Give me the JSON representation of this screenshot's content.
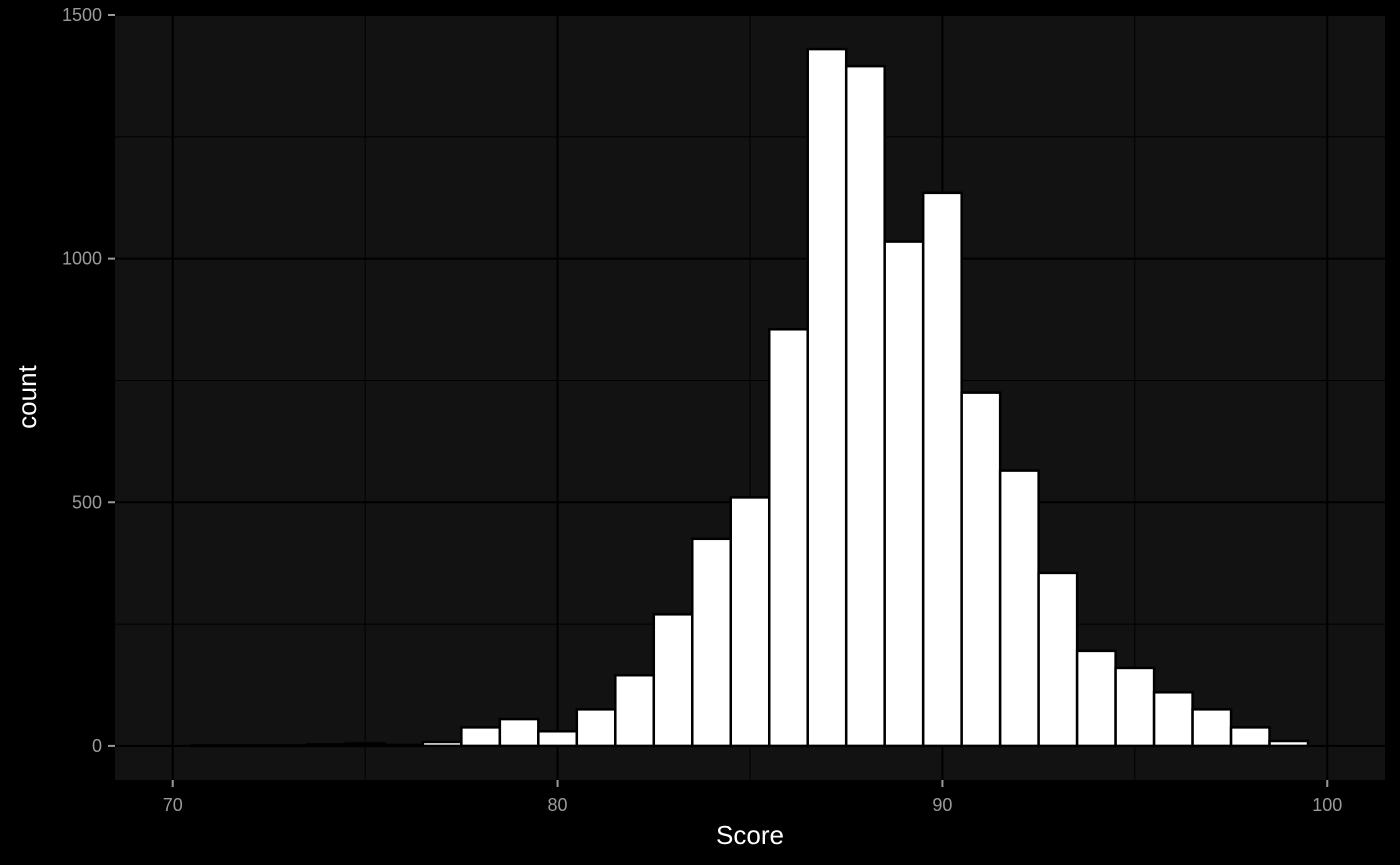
{
  "chart_data": {
    "type": "bar",
    "histogram": true,
    "title": "",
    "xlabel": "Score",
    "ylabel": "count",
    "xlim": [
      68.5,
      101.5
    ],
    "ylim": [
      -70,
      1500
    ],
    "x_ticks": [
      70,
      80,
      90,
      100
    ],
    "y_ticks": [
      0,
      500,
      1000,
      1500
    ],
    "x_tick_labels": [
      "70",
      "80",
      "90",
      "100"
    ],
    "y_tick_labels": [
      "0",
      "500",
      "1000",
      "1500"
    ],
    "grid": true,
    "legend": "none",
    "bin_width": 1,
    "bin_centers": [
      71,
      72,
      73,
      74,
      75,
      76,
      77,
      78,
      79,
      80,
      81,
      82,
      83,
      84,
      85,
      86,
      87,
      88,
      89,
      90,
      91,
      92,
      93,
      94,
      95,
      96,
      97,
      98,
      99
    ],
    "values": [
      1,
      1,
      1,
      3,
      5,
      2,
      8,
      38,
      55,
      30,
      75,
      145,
      270,
      425,
      510,
      855,
      1430,
      1395,
      1035,
      1135,
      725,
      565,
      355,
      195,
      160,
      110,
      75,
      38,
      10
    ],
    "colors": {
      "page_background": "#000000",
      "panel_background": "#121212",
      "bar_fill": "#ffffff",
      "bar_outline": "#000000",
      "grid": "#000000",
      "tick_label": "#9a9a9a",
      "axis_title": "#ffffff"
    }
  }
}
